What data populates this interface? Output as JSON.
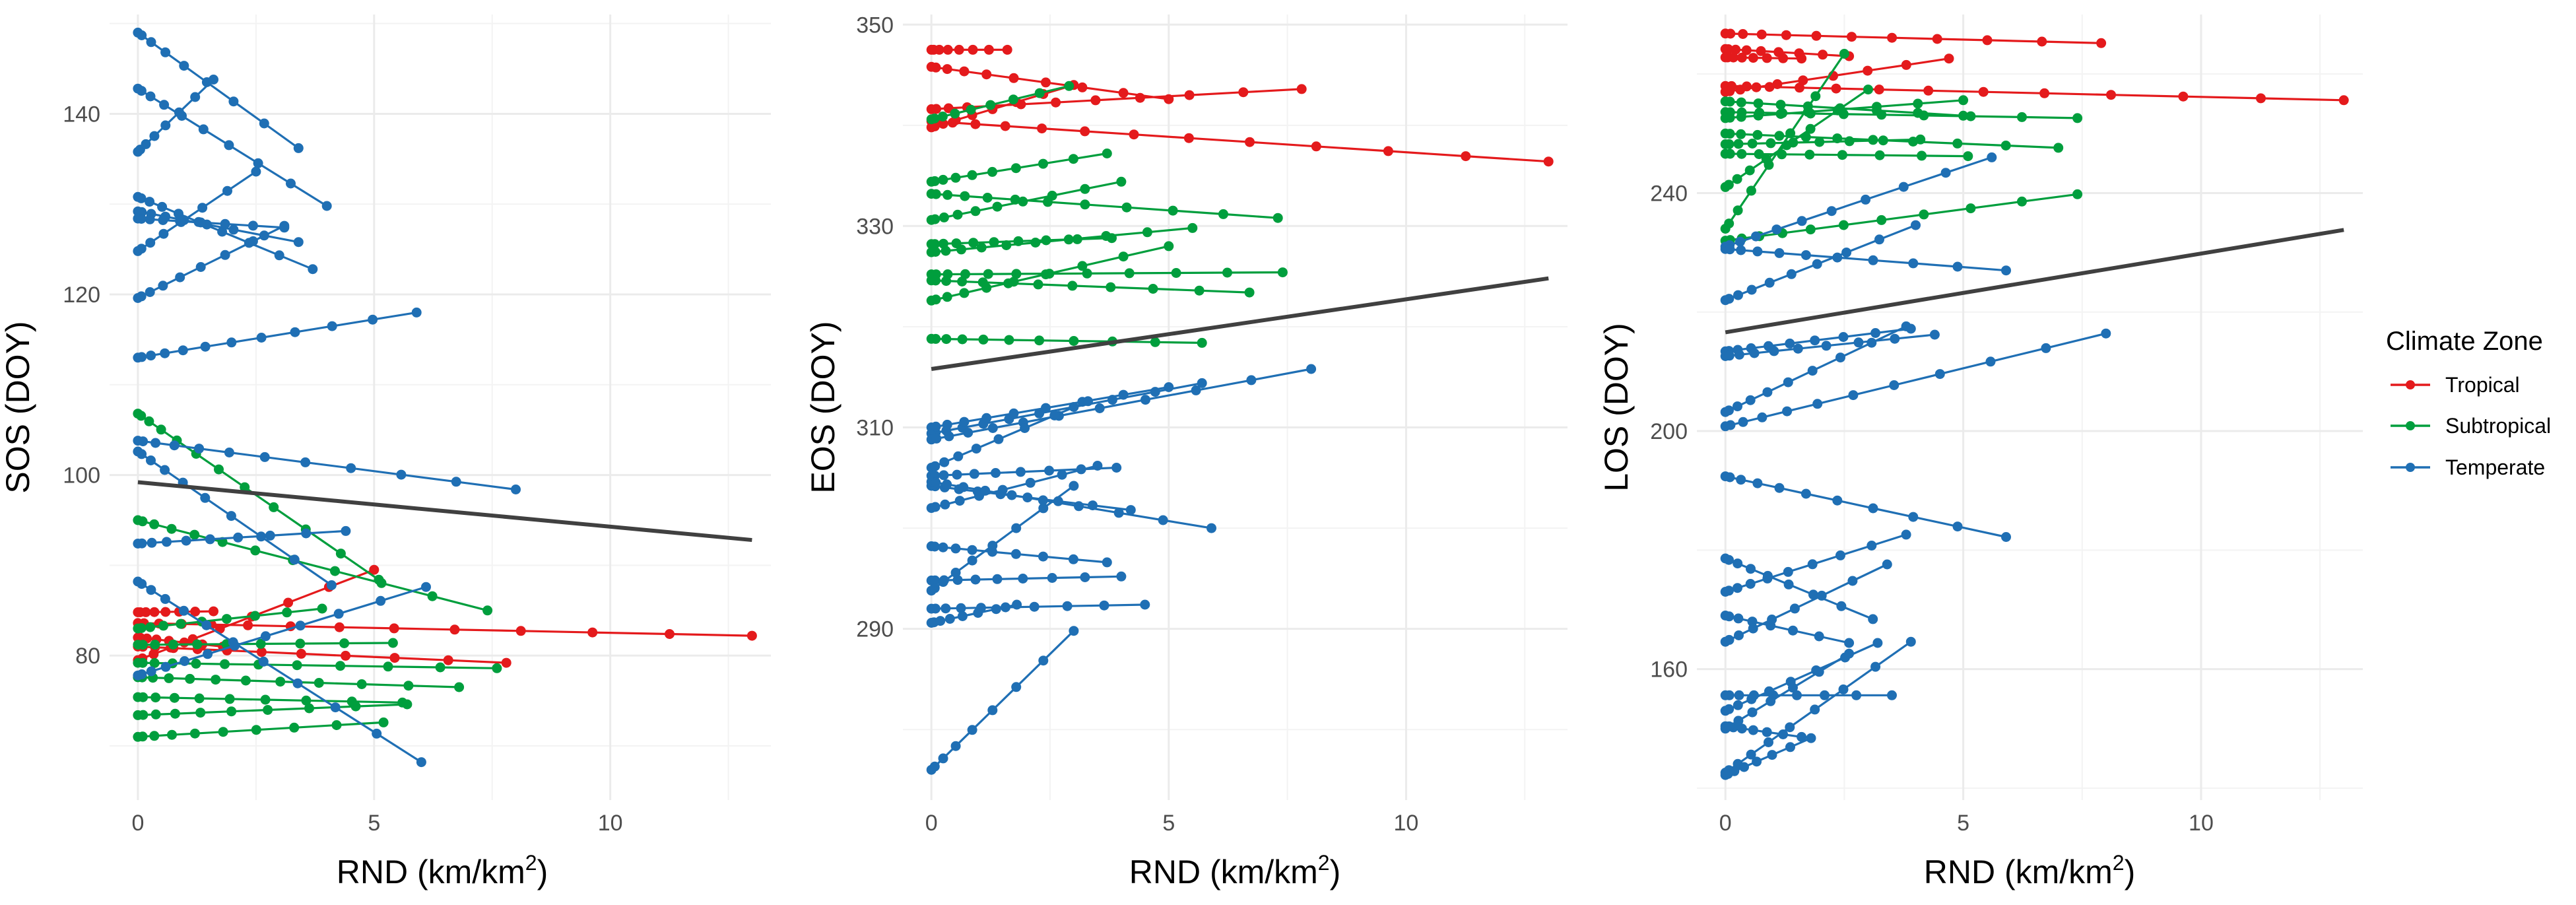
{
  "figure": {
    "x_axis_title_main": "RND (km/km",
    "x_axis_title_sup": "2",
    "x_axis_title_close": ")"
  },
  "colors": {
    "Tropical": "#e41a1c",
    "Subtropical": "#009e3d",
    "Temperate": "#1f6fb4",
    "trend": "#404040",
    "grid": "#ebebeb"
  },
  "legend": {
    "title": "Climate Zone",
    "items": [
      "Tropical",
      "Subtropical",
      "Temperate"
    ]
  },
  "chart_data": [
    {
      "type": "line",
      "ylabel": "SOS (DOY)",
      "xlabel": "RND (km/km2)",
      "xlim": [
        -0.6,
        13.4
      ],
      "ylim": [
        64,
        151
      ],
      "xticks": [
        0,
        5,
        10
      ],
      "yticks": [
        80,
        100,
        120,
        140
      ],
      "trend": [
        [
          0,
          99.2
        ],
        [
          13,
          92.8
        ]
      ],
      "series": [
        {
          "zone": "Tropical",
          "start": [
            0,
            84.8
          ],
          "end": [
            1.6,
            84.9
          ],
          "n": 8
        },
        {
          "zone": "Tropical",
          "start": [
            0,
            83.6
          ],
          "end": [
            13,
            82.2
          ],
          "n": 14
        },
        {
          "zone": "Tropical",
          "start": [
            0,
            82.0
          ],
          "end": [
            1.8,
            81.0
          ],
          "n": 8
        },
        {
          "zone": "Tropical",
          "start": [
            0,
            81.0
          ],
          "end": [
            7.8,
            79.2
          ],
          "n": 12
        },
        {
          "zone": "Tropical",
          "start": [
            0,
            79.5
          ],
          "end": [
            5.0,
            89.5
          ],
          "n": 10
        },
        {
          "zone": "Subtropical",
          "start": [
            0,
            106.8
          ],
          "end": [
            5.1,
            88.4
          ],
          "n": 12
        },
        {
          "zone": "Subtropical",
          "start": [
            0,
            95.0
          ],
          "end": [
            7.4,
            85.0
          ],
          "n": 12
        },
        {
          "zone": "Subtropical",
          "start": [
            0,
            83.0
          ],
          "end": [
            3.9,
            85.2
          ],
          "n": 10
        },
        {
          "zone": "Subtropical",
          "start": [
            0,
            81.2
          ],
          "end": [
            5.4,
            81.4
          ],
          "n": 10
        },
        {
          "zone": "Subtropical",
          "start": [
            0,
            79.2
          ],
          "end": [
            7.6,
            78.6
          ],
          "n": 12
        },
        {
          "zone": "Subtropical",
          "start": [
            0,
            77.6
          ],
          "end": [
            6.8,
            76.5
          ],
          "n": 12
        },
        {
          "zone": "Subtropical",
          "start": [
            0,
            75.4
          ],
          "end": [
            5.6,
            74.8
          ],
          "n": 10
        },
        {
          "zone": "Subtropical",
          "start": [
            0,
            73.4
          ],
          "end": [
            5.7,
            74.6
          ],
          "n": 10
        },
        {
          "zone": "Subtropical",
          "start": [
            0,
            71.0
          ],
          "end": [
            5.2,
            72.6
          ],
          "n": 10
        },
        {
          "zone": "Temperate",
          "start": [
            0,
            149.0
          ],
          "end": [
            3.4,
            136.2
          ],
          "n": 9
        },
        {
          "zone": "Temperate",
          "start": [
            0,
            142.8
          ],
          "end": [
            4.0,
            129.8
          ],
          "n": 10
        },
        {
          "zone": "Temperate",
          "start": [
            0,
            135.8
          ],
          "end": [
            1.6,
            143.8
          ],
          "n": 8
        },
        {
          "zone": "Temperate",
          "start": [
            0,
            130.8
          ],
          "end": [
            3.7,
            122.8
          ],
          "n": 10
        },
        {
          "zone": "Temperate",
          "start": [
            0,
            129.2
          ],
          "end": [
            3.4,
            125.8
          ],
          "n": 9
        },
        {
          "zone": "Temperate",
          "start": [
            0,
            124.8
          ],
          "end": [
            2.5,
            133.6
          ],
          "n": 8
        },
        {
          "zone": "Temperate",
          "start": [
            0,
            128.4
          ],
          "end": [
            3.1,
            127.4
          ],
          "n": 9
        },
        {
          "zone": "Temperate",
          "start": [
            0,
            119.6
          ],
          "end": [
            3.1,
            127.6
          ],
          "n": 9
        },
        {
          "zone": "Temperate",
          "start": [
            0,
            113.0
          ],
          "end": [
            5.9,
            118.0
          ],
          "n": 12
        },
        {
          "zone": "Temperate",
          "start": [
            0,
            103.8
          ],
          "end": [
            8.0,
            98.4
          ],
          "n": 12
        },
        {
          "zone": "Temperate",
          "start": [
            0,
            102.6
          ],
          "end": [
            4.1,
            87.8
          ],
          "n": 10
        },
        {
          "zone": "Temperate",
          "start": [
            0,
            92.4
          ],
          "end": [
            4.4,
            93.8
          ],
          "n": 10
        },
        {
          "zone": "Temperate",
          "start": [
            0,
            88.2
          ],
          "end": [
            6.0,
            68.2
          ],
          "n": 12
        },
        {
          "zone": "Temperate",
          "start": [
            0,
            77.8
          ],
          "end": [
            6.1,
            87.6
          ],
          "n": 12
        }
      ]
    },
    {
      "type": "line",
      "ylabel": "EOS (DOY)",
      "xlabel": "RND (km/km2)",
      "xlim": [
        -0.6,
        13.4
      ],
      "ylim": [
        273,
        351
      ],
      "xticks": [
        0,
        5,
        10
      ],
      "yticks": [
        290,
        310,
        330,
        350
      ],
      "trend": [
        [
          0,
          315.8
        ],
        [
          13,
          324.8
        ]
      ],
      "series": [
        {
          "zone": "Tropical",
          "start": [
            0,
            347.5
          ],
          "end": [
            1.6,
            347.5
          ],
          "n": 8
        },
        {
          "zone": "Tropical",
          "start": [
            0,
            345.8
          ],
          "end": [
            5.0,
            342.6
          ],
          "n": 10
        },
        {
          "zone": "Tropical",
          "start": [
            0,
            341.6
          ],
          "end": [
            7.8,
            343.6
          ],
          "n": 12
        },
        {
          "zone": "Tropical",
          "start": [
            0,
            340.4
          ],
          "end": [
            13,
            336.4
          ],
          "n": 14
        },
        {
          "zone": "Tropical",
          "start": [
            0,
            339.8
          ],
          "end": [
            3.0,
            344.0
          ],
          "n": 9
        },
        {
          "zone": "Subtropical",
          "start": [
            0,
            340.6
          ],
          "end": [
            2.9,
            343.9
          ],
          "n": 9
        },
        {
          "zone": "Subtropical",
          "start": [
            0,
            334.4
          ],
          "end": [
            3.7,
            337.2
          ],
          "n": 10
        },
        {
          "zone": "Subtropical",
          "start": [
            0,
            333.2
          ],
          "end": [
            7.3,
            330.8
          ],
          "n": 12
        },
        {
          "zone": "Subtropical",
          "start": [
            0,
            330.6
          ],
          "end": [
            4.0,
            334.4
          ],
          "n": 10
        },
        {
          "zone": "Subtropical",
          "start": [
            0,
            328.2
          ],
          "end": [
            3.8,
            328.8
          ],
          "n": 10
        },
        {
          "zone": "Subtropical",
          "start": [
            0,
            327.4
          ],
          "end": [
            5.5,
            329.8
          ],
          "n": 11
        },
        {
          "zone": "Subtropical",
          "start": [
            0,
            325.2
          ],
          "end": [
            7.4,
            325.4
          ],
          "n": 12
        },
        {
          "zone": "Subtropical",
          "start": [
            0,
            324.6
          ],
          "end": [
            6.7,
            323.4
          ],
          "n": 12
        },
        {
          "zone": "Subtropical",
          "start": [
            0,
            322.6
          ],
          "end": [
            5.0,
            328.0
          ],
          "n": 10
        },
        {
          "zone": "Subtropical",
          "start": [
            0,
            318.8
          ],
          "end": [
            5.7,
            318.4
          ],
          "n": 11
        },
        {
          "zone": "Temperate",
          "start": [
            0,
            309.4
          ],
          "end": [
            5.7,
            314.4
          ],
          "n": 11
        },
        {
          "zone": "Temperate",
          "start": [
            0,
            310.0
          ],
          "end": [
            5.0,
            314.0
          ],
          "n": 10
        },
        {
          "zone": "Temperate",
          "start": [
            0,
            308.8
          ],
          "end": [
            8.0,
            315.8
          ],
          "n": 12
        },
        {
          "zone": "Temperate",
          "start": [
            0,
            306.0
          ],
          "end": [
            3.3,
            312.6
          ],
          "n": 9
        },
        {
          "zone": "Temperate",
          "start": [
            0,
            305.2
          ],
          "end": [
            3.9,
            306.0
          ],
          "n": 10
        },
        {
          "zone": "Temperate",
          "start": [
            0,
            304.2
          ],
          "end": [
            4.2,
            301.8
          ],
          "n": 10
        },
        {
          "zone": "Temperate",
          "start": [
            0,
            302.0
          ],
          "end": [
            3.5,
            306.2
          ],
          "n": 9
        },
        {
          "zone": "Temperate",
          "start": [
            0,
            304.6
          ],
          "end": [
            5.9,
            300.0
          ],
          "n": 11
        },
        {
          "zone": "Temperate",
          "start": [
            0,
            298.2
          ],
          "end": [
            3.7,
            296.6
          ],
          "n": 10
        },
        {
          "zone": "Temperate",
          "start": [
            0,
            294.8
          ],
          "end": [
            4.0,
            295.2
          ],
          "n": 10
        },
        {
          "zone": "Temperate",
          "start": [
            0,
            293.8
          ],
          "end": [
            3.0,
            304.2
          ],
          "n": 9
        },
        {
          "zone": "Temperate",
          "start": [
            0,
            292.0
          ],
          "end": [
            4.5,
            292.4
          ],
          "n": 10
        },
        {
          "zone": "Temperate",
          "start": [
            0,
            290.6
          ],
          "end": [
            1.8,
            292.4
          ],
          "n": 8
        },
        {
          "zone": "Temperate",
          "start": [
            0,
            276.0
          ],
          "end": [
            3.0,
            289.8
          ],
          "n": 9
        }
      ]
    },
    {
      "type": "line",
      "ylabel": "LOS (DOY)",
      "xlabel": "RND (km/km2)",
      "xlim": [
        -0.6,
        13.4
      ],
      "ylim": [
        138,
        270
      ],
      "xticks": [
        0,
        5,
        10
      ],
      "yticks": [
        160,
        200,
        240
      ],
      "trend": [
        [
          0,
          216.6
        ],
        [
          13,
          233.8
        ]
      ],
      "series": [
        {
          "zone": "Tropical",
          "start": [
            0,
            266.8
          ],
          "end": [
            7.9,
            265.2
          ],
          "n": 12
        },
        {
          "zone": "Tropical",
          "start": [
            0,
            264.2
          ],
          "end": [
            2.6,
            263.0
          ],
          "n": 9
        },
        {
          "zone": "Tropical",
          "start": [
            0,
            262.8
          ],
          "end": [
            1.6,
            262.6
          ],
          "n": 8
        },
        {
          "zone": "Tropical",
          "start": [
            0,
            258.0
          ],
          "end": [
            13,
            255.6
          ],
          "n": 14
        },
        {
          "zone": "Tropical",
          "start": [
            0,
            257.0
          ],
          "end": [
            4.7,
            262.6
          ],
          "n": 10
        },
        {
          "zone": "Subtropical",
          "start": [
            0,
            255.4
          ],
          "end": [
            5.0,
            253.0
          ],
          "n": 10
        },
        {
          "zone": "Subtropical",
          "start": [
            0,
            253.6
          ],
          "end": [
            7.4,
            252.6
          ],
          "n": 12
        },
        {
          "zone": "Subtropical",
          "start": [
            0,
            252.6
          ],
          "end": [
            5.0,
            255.6
          ],
          "n": 10
        },
        {
          "zone": "Subtropical",
          "start": [
            0,
            250.0
          ],
          "end": [
            7.0,
            247.6
          ],
          "n": 12
        },
        {
          "zone": "Subtropical",
          "start": [
            0,
            248.2
          ],
          "end": [
            4.1,
            249.0
          ],
          "n": 10
        },
        {
          "zone": "Subtropical",
          "start": [
            0,
            246.6
          ],
          "end": [
            5.1,
            246.2
          ],
          "n": 10
        },
        {
          "zone": "Subtropical",
          "start": [
            0,
            241.0
          ],
          "end": [
            3.0,
            257.4
          ],
          "n": 9
        },
        {
          "zone": "Subtropical",
          "start": [
            0,
            234.0
          ],
          "end": [
            2.5,
            263.4
          ],
          "n": 8
        },
        {
          "zone": "Subtropical",
          "start": [
            0,
            232.0
          ],
          "end": [
            7.4,
            239.8
          ],
          "n": 12
        },
        {
          "zone": "Temperate",
          "start": [
            0,
            231.0
          ],
          "end": [
            5.6,
            246.0
          ],
          "n": 11
        },
        {
          "zone": "Temperate",
          "start": [
            0,
            230.6
          ],
          "end": [
            5.9,
            227.0
          ],
          "n": 11
        },
        {
          "zone": "Temperate",
          "start": [
            0,
            222.0
          ],
          "end": [
            4.0,
            234.6
          ],
          "n": 10
        },
        {
          "zone": "Temperate",
          "start": [
            0,
            213.4
          ],
          "end": [
            3.9,
            217.2
          ],
          "n": 10
        },
        {
          "zone": "Temperate",
          "start": [
            0,
            212.6
          ],
          "end": [
            4.4,
            216.2
          ],
          "n": 10
        },
        {
          "zone": "Temperate",
          "start": [
            0,
            203.2
          ],
          "end": [
            3.8,
            217.6
          ],
          "n": 10
        },
        {
          "zone": "Temperate",
          "start": [
            0,
            200.8
          ],
          "end": [
            8.0,
            216.4
          ],
          "n": 12
        },
        {
          "zone": "Temperate",
          "start": [
            0,
            192.4
          ],
          "end": [
            5.9,
            182.2
          ],
          "n": 11
        },
        {
          "zone": "Temperate",
          "start": [
            0,
            178.6
          ],
          "end": [
            3.1,
            168.4
          ],
          "n": 9
        },
        {
          "zone": "Temperate",
          "start": [
            0,
            173.0
          ],
          "end": [
            3.8,
            182.6
          ],
          "n": 10
        },
        {
          "zone": "Temperate",
          "start": [
            0,
            169.0
          ],
          "end": [
            2.6,
            164.4
          ],
          "n": 8
        },
        {
          "zone": "Temperate",
          "start": [
            0,
            164.6
          ],
          "end": [
            3.4,
            177.6
          ],
          "n": 9
        },
        {
          "zone": "Temperate",
          "start": [
            0,
            155.6
          ],
          "end": [
            3.5,
            155.6
          ],
          "n": 9
        },
        {
          "zone": "Temperate",
          "start": [
            0,
            153.0
          ],
          "end": [
            3.2,
            164.4
          ],
          "n": 9
        },
        {
          "zone": "Temperate",
          "start": [
            0,
            150.4
          ],
          "end": [
            1.6,
            148.6
          ],
          "n": 8
        },
        {
          "zone": "Temperate",
          "start": [
            0,
            150.0
          ],
          "end": [
            2.6,
            162.6
          ],
          "n": 8
        },
        {
          "zone": "Temperate",
          "start": [
            0,
            142.6
          ],
          "end": [
            3.9,
            164.6
          ],
          "n": 10
        },
        {
          "zone": "Temperate",
          "start": [
            0,
            142.2
          ],
          "end": [
            1.8,
            148.4
          ],
          "n": 8
        }
      ]
    }
  ]
}
